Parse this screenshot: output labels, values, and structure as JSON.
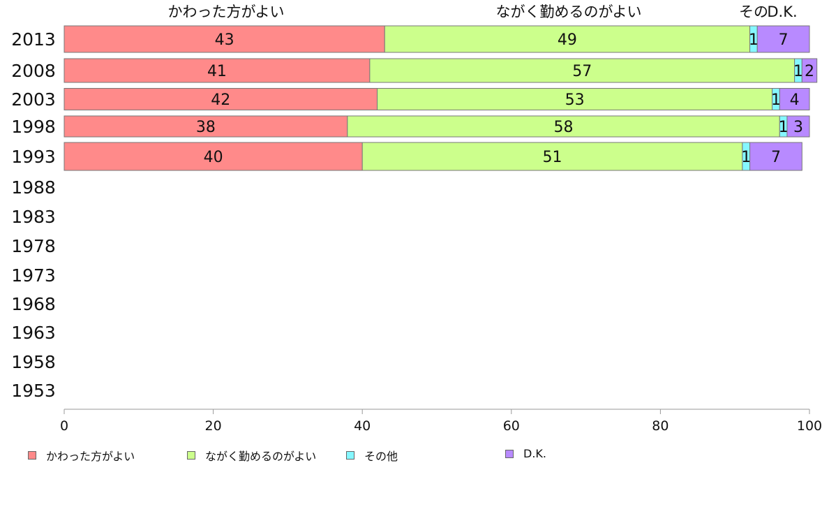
{
  "chart_data": {
    "type": "bar",
    "orientation": "horizontal",
    "stacked": true,
    "categories": [
      "2013",
      "2008",
      "2003",
      "1998",
      "1993",
      "1988",
      "1983",
      "1978",
      "1973",
      "1968",
      "1963",
      "1958",
      "1953"
    ],
    "series": [
      {
        "name": "かわった方がよい",
        "color": "#ff8a8a",
        "values": [
          43,
          41,
          42,
          38,
          40,
          null,
          null,
          null,
          null,
          null,
          null,
          null,
          null
        ]
      },
      {
        "name": "ながく勤めるのがよい",
        "color": "#ccff8c",
        "values": [
          49,
          57,
          53,
          58,
          51,
          null,
          null,
          null,
          null,
          null,
          null,
          null,
          null
        ]
      },
      {
        "name": "その他",
        "color": "#85f7ff",
        "values": [
          1,
          1,
          1,
          1,
          1,
          null,
          null,
          null,
          null,
          null,
          null,
          null,
          null
        ]
      },
      {
        "name": "D.K.",
        "color": "#b88aff",
        "values": [
          7,
          2,
          4,
          3,
          7,
          null,
          null,
          null,
          null,
          null,
          null,
          null,
          null
        ]
      }
    ],
    "top_labels": [
      "かわった方がよい",
      "ながく勤めるのがよい",
      "その",
      "D.K."
    ],
    "xlim": [
      0,
      100
    ],
    "xticks": [
      0,
      20,
      40,
      60,
      80,
      100
    ],
    "legend_position": "bottom",
    "grid": false
  }
}
